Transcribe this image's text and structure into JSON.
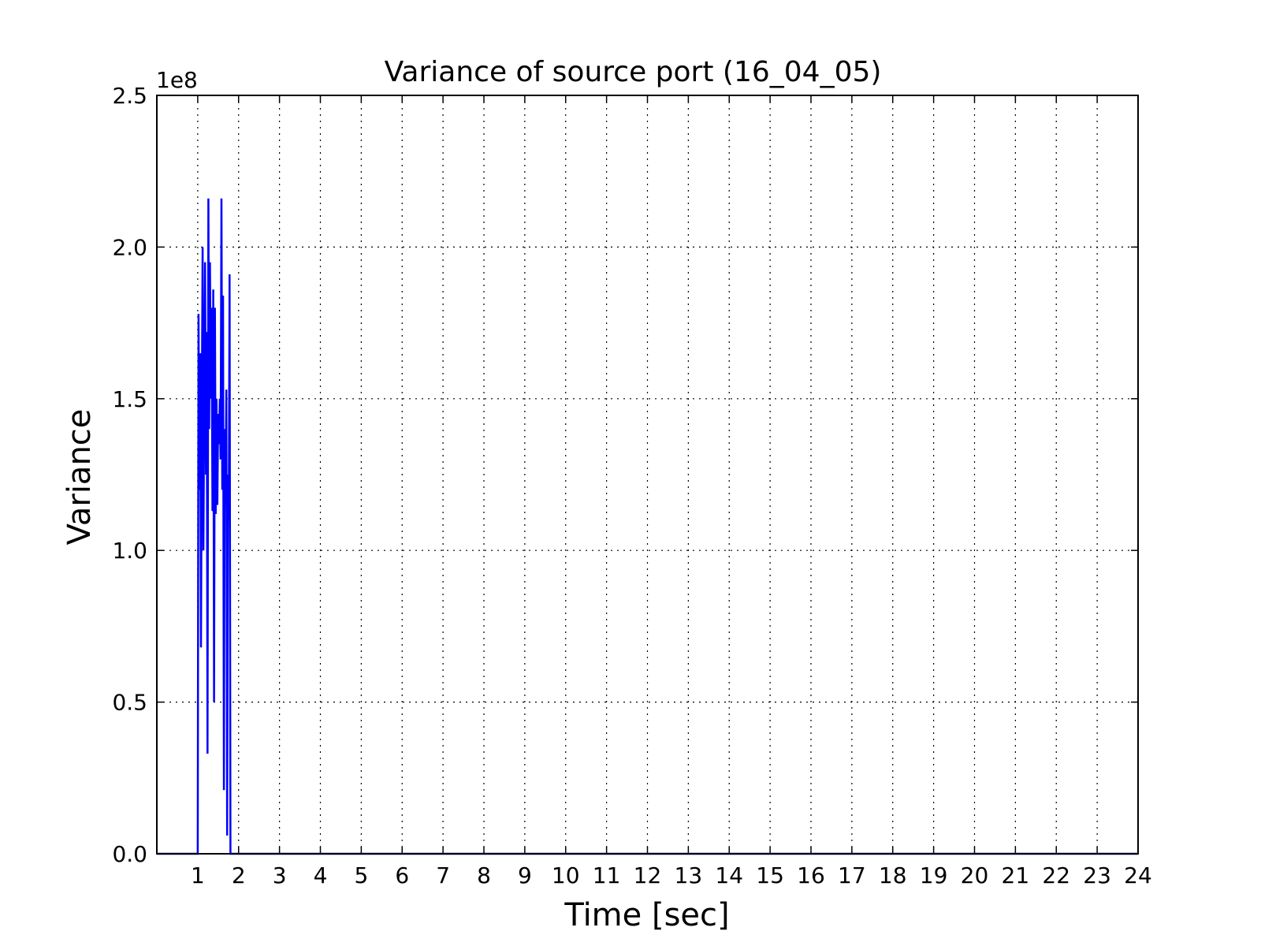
{
  "chart_data": {
    "type": "line",
    "title": "Variance of source port (16_04_05)",
    "xlabel": "Time [sec]",
    "ylabel": "Variance",
    "y_offset_label": "1e8",
    "xlim": [
      0,
      24
    ],
    "ylim": [
      0,
      250000000
    ],
    "x_ticks": [
      1,
      2,
      3,
      4,
      5,
      6,
      7,
      8,
      9,
      10,
      11,
      12,
      13,
      14,
      15,
      16,
      17,
      18,
      19,
      20,
      21,
      22,
      23,
      24
    ],
    "x_tick_labels": [
      "1",
      "2",
      "3",
      "4",
      "5",
      "6",
      "7",
      "8",
      "9",
      "10",
      "11",
      "12",
      "13",
      "14",
      "15",
      "16",
      "17",
      "18",
      "19",
      "20",
      "21",
      "22",
      "23",
      "24"
    ],
    "y_ticks": [
      0,
      50000000,
      100000000,
      150000000,
      200000000,
      250000000
    ],
    "y_tick_labels": [
      "0.0",
      "0.5",
      "1.0",
      "1.5",
      "2.0",
      "2.5"
    ],
    "grid": true,
    "series": [
      {
        "color": "#0000ff",
        "x": [
          0,
          1.0,
          1.02,
          1.04,
          1.06,
          1.08,
          1.1,
          1.12,
          1.14,
          1.16,
          1.18,
          1.2,
          1.22,
          1.24,
          1.26,
          1.28,
          1.3,
          1.32,
          1.34,
          1.36,
          1.38,
          1.4,
          1.42,
          1.44,
          1.46,
          1.48,
          1.5,
          1.52,
          1.54,
          1.56,
          1.58,
          1.6,
          1.62,
          1.64,
          1.66,
          1.68,
          1.7,
          1.72,
          1.74,
          1.76,
          1.78,
          1.8,
          1.82,
          1.84,
          1.86,
          1.88,
          1.9,
          24
        ],
        "y": [
          0,
          0,
          178000000,
          120000000,
          165000000,
          68000000,
          150000000,
          200000000,
          100000000,
          155000000,
          195000000,
          125000000,
          172000000,
          33000000,
          216000000,
          140000000,
          195000000,
          150000000,
          180000000,
          113000000,
          186000000,
          50000000,
          180000000,
          112000000,
          150000000,
          115000000,
          145000000,
          135000000,
          150000000,
          130000000,
          216000000,
          120000000,
          184000000,
          21000000,
          140000000,
          115000000,
          153000000,
          6000000,
          125000000,
          110000000,
          191000000,
          0,
          0,
          0,
          0,
          0,
          0,
          0
        ]
      }
    ]
  }
}
